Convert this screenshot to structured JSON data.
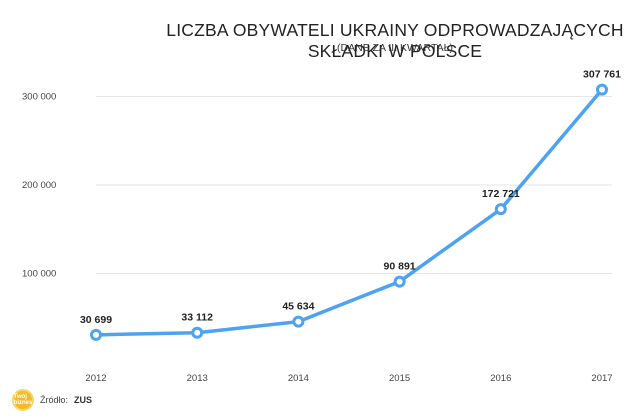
{
  "chart_data": {
    "type": "line",
    "title": "LICZBA OBYWATELI UKRAINY ODPROWADZAJĄCYCH SKŁADKI W POLSCE",
    "subtitle": "(DANE ZA III KWARTAŁ)",
    "categories": [
      "2012",
      "2013",
      "2014",
      "2015",
      "2016",
      "2017"
    ],
    "values": [
      30699,
      33112,
      45634,
      90891,
      172721,
      307761
    ],
    "data_labels": [
      "30 699",
      "33 112",
      "45 634",
      "90 891",
      "172 721",
      "307 761"
    ],
    "y_ticks": [
      100000,
      200000,
      300000
    ],
    "y_tick_labels": [
      "100 000",
      "200 000",
      "300 000"
    ],
    "ylim": [
      0,
      330000
    ],
    "xlabel": "",
    "ylabel": "",
    "grid": true,
    "line_color": "#4da3f0",
    "grid_color": "#e6e6e6"
  },
  "source": {
    "logo_text": "Twój biznes",
    "prefix": "Źródło:",
    "name": "ZUS"
  }
}
